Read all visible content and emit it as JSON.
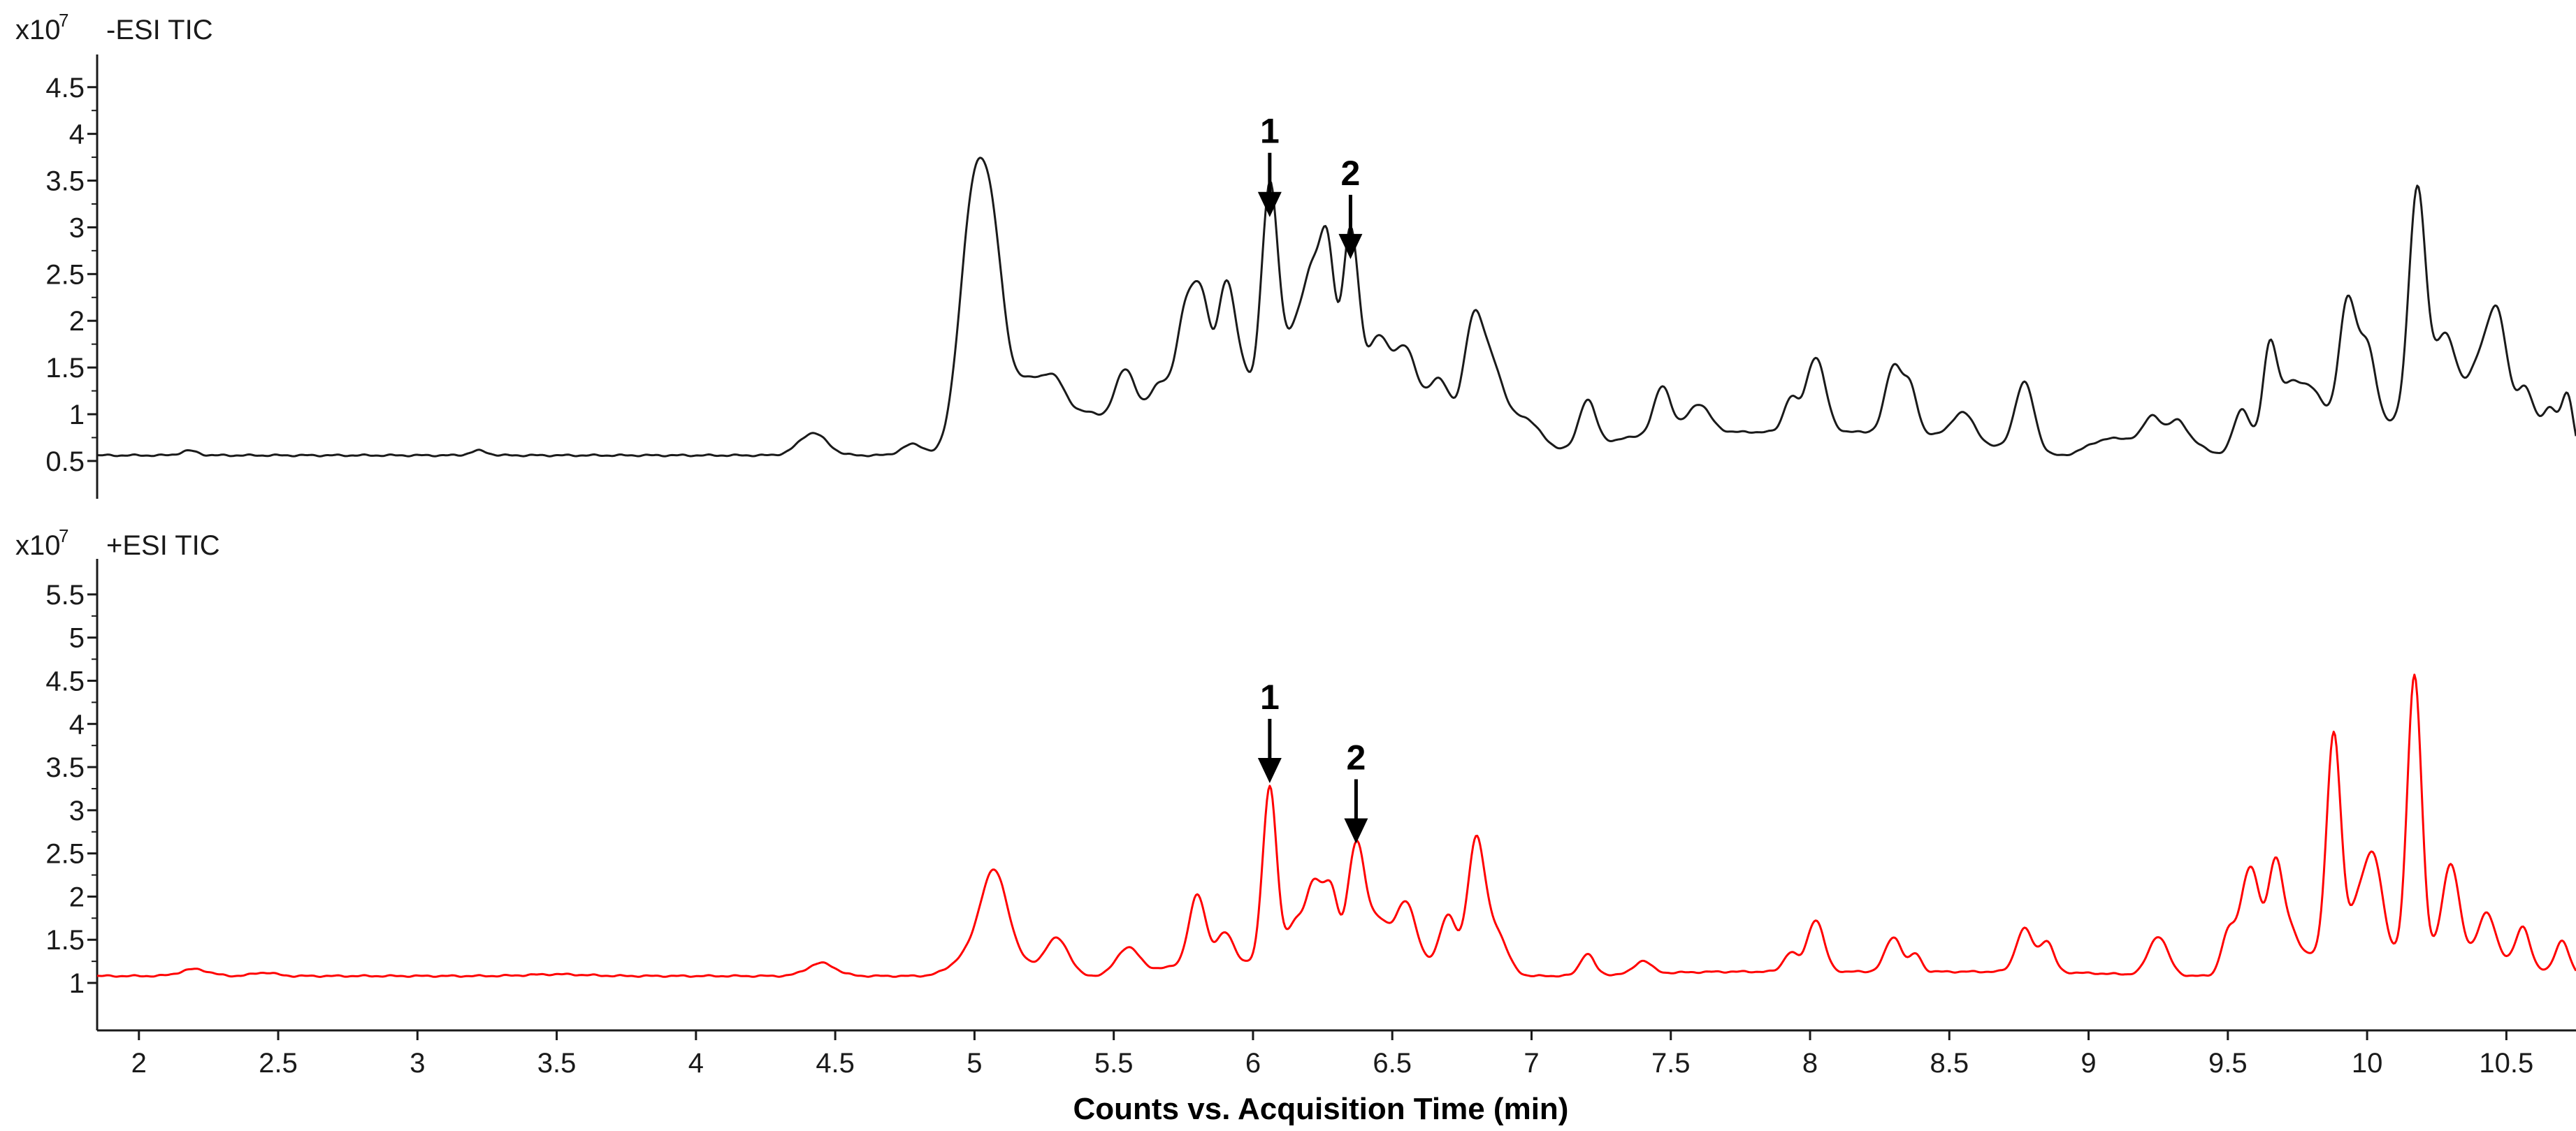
{
  "chart_data": {
    "type": "line",
    "xlabel": "Counts vs. Acquisition Time (min)",
    "xlim": [
      1.85,
      10.75
    ],
    "x_ticks": [
      "2",
      "2.5",
      "3",
      "3.5",
      "4",
      "4.5",
      "5",
      "5.5",
      "6",
      "6.5",
      "7",
      "7.5",
      "8",
      "8.5",
      "9",
      "9.5",
      "10",
      "10.5"
    ],
    "panels": [
      {
        "title": "-ESI TIC",
        "exponent_base": "x10",
        "exponent": "7",
        "color": "#1a1a1a",
        "ylim": [
          0.2,
          4.7
        ],
        "y_ticks": [
          "0.5",
          "1",
          "1.5",
          "2",
          "2.5",
          "3",
          "3.5",
          "4",
          "4.5"
        ],
        "annotations": [
          {
            "label": "1",
            "x": 6.06,
            "y": 3.05
          },
          {
            "label": "2",
            "x": 6.35,
            "y": 2.6
          }
        ],
        "series": [
          {
            "baseline": 0.56,
            "peaks": [
              [
                2.18,
                0.05,
                0.03
              ],
              [
                3.22,
                0.05,
                0.03
              ],
              [
                4.42,
                0.24,
                0.05
              ],
              [
                4.78,
                0.12,
                0.04
              ],
              [
                5.0,
                2.45,
                0.05
              ],
              [
                5.07,
                1.3,
                0.04
              ],
              [
                5.18,
                0.45,
                0.06
              ],
              [
                5.3,
                0.65,
                0.05
              ],
              [
                5.42,
                0.4,
                0.05
              ],
              [
                5.54,
                0.78,
                0.04
              ],
              [
                5.66,
                0.5,
                0.04
              ],
              [
                5.76,
                1.2,
                0.035
              ],
              [
                5.82,
                1.1,
                0.03
              ],
              [
                5.9,
                1.2,
                0.03
              ],
              [
                5.95,
                0.6,
                0.04
              ],
              [
                6.06,
                2.5,
                0.03
              ],
              [
                6.15,
                0.9,
                0.04
              ],
              [
                6.22,
                1.4,
                0.035
              ],
              [
                6.27,
                1.45,
                0.025
              ],
              [
                6.35,
                2.05,
                0.03
              ],
              [
                6.45,
                0.9,
                0.04
              ],
              [
                6.55,
                0.8,
                0.04
              ],
              [
                6.67,
                0.6,
                0.04
              ],
              [
                6.79,
                1.25,
                0.035
              ],
              [
                6.86,
                0.8,
                0.04
              ],
              [
                6.97,
                0.4,
                0.06
              ],
              [
                7.2,
                0.5,
                0.03
              ],
              [
                7.47,
                0.5,
                0.03
              ],
              [
                7.6,
                0.3,
                0.04
              ],
              [
                7.93,
                0.35,
                0.025
              ],
              [
                8.02,
                0.8,
                0.035
              ],
              [
                8.3,
                0.7,
                0.03
              ],
              [
                8.36,
                0.45,
                0.025
              ],
              [
                8.55,
                0.3,
                0.04
              ],
              [
                8.77,
                0.75,
                0.035
              ],
              [
                9.23,
                0.25,
                0.03
              ],
              [
                9.32,
                0.2,
                0.03
              ],
              [
                9.55,
                0.48,
                0.03
              ],
              [
                9.65,
                1.0,
                0.025
              ],
              [
                9.72,
                0.5,
                0.04
              ],
              [
                9.8,
                0.35,
                0.04
              ],
              [
                9.93,
                1.3,
                0.03
              ],
              [
                10.0,
                0.8,
                0.03
              ],
              [
                10.18,
                2.5,
                0.03
              ],
              [
                10.28,
                0.95,
                0.04
              ],
              [
                10.4,
                0.6,
                0.04
              ],
              [
                10.47,
                1.15,
                0.035
              ],
              [
                10.57,
                0.55,
                0.03
              ],
              [
                10.66,
                0.45,
                0.03
              ],
              [
                10.72,
                0.6,
                0.02
              ]
            ],
            "ramps": [
              [
                4.85,
                5.35,
                0.32
              ],
              [
                5.35,
                6.95,
                0.35
              ],
              [
                6.95,
                8.9,
                0.25
              ],
              [
                8.9,
                9.5,
                0.18
              ],
              [
                9.5,
                10.75,
                0.35
              ]
            ]
          }
        ]
      },
      {
        "title": "+ESI TIC",
        "exponent_base": "x10",
        "exponent": "7",
        "color": "#ff0000",
        "ylim": [
          0.45,
          5.75
        ],
        "y_ticks": [
          "1",
          "1.5",
          "2",
          "2.5",
          "3",
          "3.5",
          "4",
          "4.5",
          "5",
          "5.5"
        ],
        "annotations": [
          {
            "label": "1",
            "x": 6.06,
            "y": 3.25
          },
          {
            "label": "2",
            "x": 6.37,
            "y": 2.55
          }
        ],
        "series": [
          {
            "baseline": 1.08,
            "peaks": [
              [
                2.2,
                0.08,
                0.05
              ],
              [
                2.45,
                0.04,
                0.04
              ],
              [
                3.5,
                0.02,
                0.1
              ],
              [
                4.45,
                0.15,
                0.05
              ],
              [
                4.95,
                0.15,
                0.05
              ],
              [
                5.07,
                1.1,
                0.05
              ],
              [
                5.3,
                0.35,
                0.04
              ],
              [
                5.55,
                0.3,
                0.04
              ],
              [
                5.8,
                0.8,
                0.03
              ],
              [
                5.9,
                0.35,
                0.03
              ],
              [
                6.06,
                2.05,
                0.025
              ],
              [
                6.15,
                0.45,
                0.03
              ],
              [
                6.22,
                0.9,
                0.03
              ],
              [
                6.28,
                0.8,
                0.025
              ],
              [
                6.37,
                1.35,
                0.03
              ],
              [
                6.45,
                0.5,
                0.04
              ],
              [
                6.55,
                0.7,
                0.035
              ],
              [
                6.7,
                0.6,
                0.03
              ],
              [
                6.8,
                1.45,
                0.03
              ],
              [
                6.87,
                0.5,
                0.04
              ],
              [
                7.2,
                0.25,
                0.025
              ],
              [
                7.4,
                0.15,
                0.03
              ],
              [
                7.93,
                0.22,
                0.025
              ],
              [
                8.02,
                0.6,
                0.03
              ],
              [
                8.3,
                0.4,
                0.03
              ],
              [
                8.38,
                0.2,
                0.02
              ],
              [
                8.77,
                0.5,
                0.03
              ],
              [
                8.85,
                0.35,
                0.025
              ],
              [
                9.25,
                0.45,
                0.035
              ],
              [
                9.5,
                0.45,
                0.025
              ],
              [
                9.58,
                1.2,
                0.035
              ],
              [
                9.67,
                1.1,
                0.025
              ],
              [
                9.72,
                0.35,
                0.03
              ],
              [
                9.88,
                2.55,
                0.025
              ],
              [
                9.98,
                0.7,
                0.04
              ],
              [
                10.03,
                0.8,
                0.03
              ],
              [
                10.17,
                3.25,
                0.025
              ],
              [
                10.3,
                1.05,
                0.03
              ],
              [
                10.43,
                0.5,
                0.03
              ],
              [
                10.56,
                0.45,
                0.025
              ],
              [
                10.7,
                0.4,
                0.025
              ]
            ],
            "ramps": [
              [
                4.9,
                5.4,
                0.12
              ],
              [
                5.4,
                7.0,
                0.15
              ],
              [
                7.0,
                9.45,
                0.05
              ],
              [
                9.45,
                10.75,
                0.25
              ]
            ]
          }
        ]
      }
    ]
  }
}
